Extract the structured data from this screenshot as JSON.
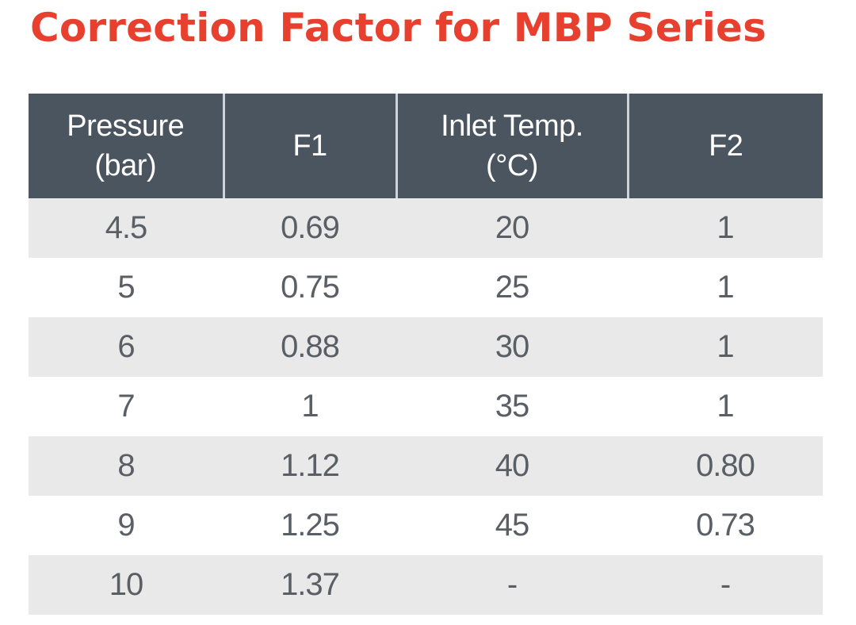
{
  "title": "Correction Factor for MBP Series",
  "colors": {
    "title": "#e8402e",
    "header_bg": "#4a5560",
    "header_text": "#ffffff",
    "row_shade": "#e9e9ea",
    "cell_text": "#5a5f66"
  },
  "table": {
    "headers": [
      {
        "line1": "Pressure",
        "line2": "(bar)"
      },
      {
        "line1": "F1",
        "line2": ""
      },
      {
        "line1": "Inlet Temp.",
        "line2": "(°C)"
      },
      {
        "line1": "F2",
        "line2": ""
      }
    ],
    "rows": [
      [
        "4.5",
        "0.69",
        "20",
        "1"
      ],
      [
        "5",
        "0.75",
        "25",
        "1"
      ],
      [
        "6",
        "0.88",
        "30",
        "1"
      ],
      [
        "7",
        "1",
        "35",
        "1"
      ],
      [
        "8",
        "1.12",
        "40",
        "0.80"
      ],
      [
        "9",
        "1.25",
        "45",
        "0.73"
      ],
      [
        "10",
        "1.37",
        "-",
        "-"
      ]
    ]
  }
}
